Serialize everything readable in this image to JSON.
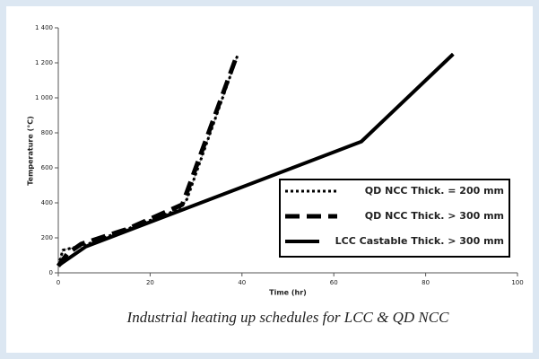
{
  "chart_data": {
    "type": "line",
    "caption": "Industrial heating up schedules for LCC & QD NCC",
    "x_label": "Time (hr)",
    "y_label": "Temperature (°C)",
    "xlim": [
      0,
      100
    ],
    "xticks": [
      0,
      20,
      40,
      60,
      80,
      100
    ],
    "ylim": [
      0,
      1400
    ],
    "yticks": [
      0,
      200,
      400,
      600,
      800,
      {
        "value": 1000,
        "label": "1 000"
      },
      {
        "value": 1200,
        "label": "1 200"
      },
      {
        "value": 1400,
        "label": "1 400"
      }
    ],
    "legend": "lower right",
    "series": [
      {
        "name": "QD NCC Thick. = 200 mm",
        "color": "#000000",
        "line_style": "dotted",
        "x": [
          0,
          1,
          6,
          26,
          28,
          39
        ],
        "values": [
          40,
          130,
          160,
          360,
          420,
          1240
        ]
      },
      {
        "name": "QD NCC Thick. > 300 mm",
        "color": "#000000",
        "line_style": "dashed",
        "x": [
          0,
          2,
          5,
          15,
          27,
          39
        ],
        "values": [
          40,
          110,
          165,
          250,
          390,
          1250
        ]
      },
      {
        "name": "LCC Castable Thick. > 300 mm",
        "color": "#000000",
        "line_style": "solid",
        "x": [
          0,
          1,
          6,
          66,
          86
        ],
        "values": [
          40,
          60,
          150,
          750,
          1250
        ]
      }
    ]
  }
}
